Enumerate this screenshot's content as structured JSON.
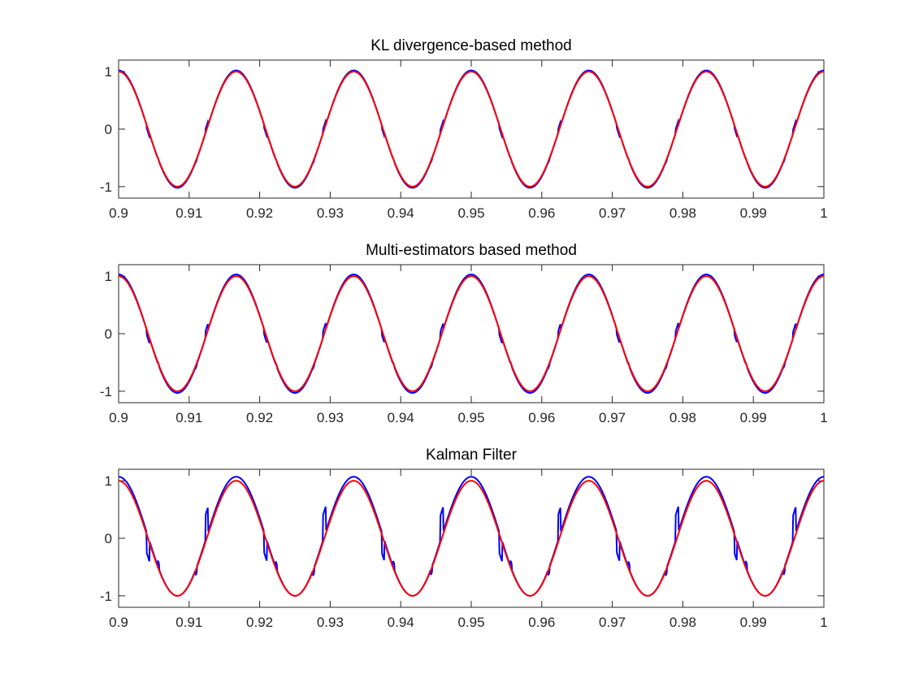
{
  "chart_data": [
    {
      "type": "line",
      "title": "KL divergence-based method",
      "xlim": [
        0.9,
        1.0
      ],
      "ylim": [
        -1.2,
        1.2
      ],
      "x_ticks": [
        "0.9",
        "0.91",
        "0.92",
        "0.93",
        "0.94",
        "0.95",
        "0.96",
        "0.97",
        "0.98",
        "0.99",
        "1"
      ],
      "y_ticks": [
        "1",
        "0",
        "-1"
      ],
      "frequency": 60,
      "series": [
        {
          "color": "#0000ff",
          "description": "estimate closely tracking the reference cosine; small step glitches near zero crossings",
          "amplitude": 1.02,
          "glitch": 0.06
        },
        {
          "color": "#ff0000",
          "description": "reference signal y = cos(2*pi*60*t)",
          "amplitude": 1.0,
          "glitch": 0
        }
      ]
    },
    {
      "type": "line",
      "title": "Multi-estimators based method",
      "xlim": [
        0.9,
        1.0
      ],
      "ylim": [
        -1.2,
        1.2
      ],
      "x_ticks": [
        "0.9",
        "0.91",
        "0.92",
        "0.93",
        "0.94",
        "0.95",
        "0.96",
        "0.97",
        "0.98",
        "0.99",
        "1"
      ],
      "y_ticks": [
        "1",
        "0",
        "-1"
      ],
      "frequency": 60,
      "series": [
        {
          "color": "#0000ff",
          "description": "estimate closely tracking the reference cosine; slightly larger glitches near zero crossings",
          "amplitude": 1.03,
          "glitch": 0.1
        },
        {
          "color": "#ff0000",
          "description": "reference signal y = cos(2*pi*60*t)",
          "amplitude": 1.0,
          "glitch": 0
        }
      ]
    },
    {
      "type": "line",
      "title": "Kalman Filter",
      "xlim": [
        0.9,
        1.0
      ],
      "ylim": [
        -1.2,
        1.2
      ],
      "x_ticks": [
        "0.9",
        "0.91",
        "0.92",
        "0.93",
        "0.94",
        "0.95",
        "0.96",
        "0.97",
        "0.98",
        "0.99",
        "1"
      ],
      "y_ticks": [
        "1",
        "0",
        "-1"
      ],
      "frequency": 60,
      "series": [
        {
          "color": "#0000ff",
          "description": "noisier estimate with visible spikes (~0.4) near zero crossings, peaks near 1.07, troughs near -0.93",
          "amplitude": 1.0,
          "offset": 0.07,
          "glitch": 0.4
        },
        {
          "color": "#ff0000",
          "description": "reference signal y = cos(2*pi*60*t)",
          "amplitude": 1.0,
          "glitch": 0
        }
      ]
    }
  ]
}
